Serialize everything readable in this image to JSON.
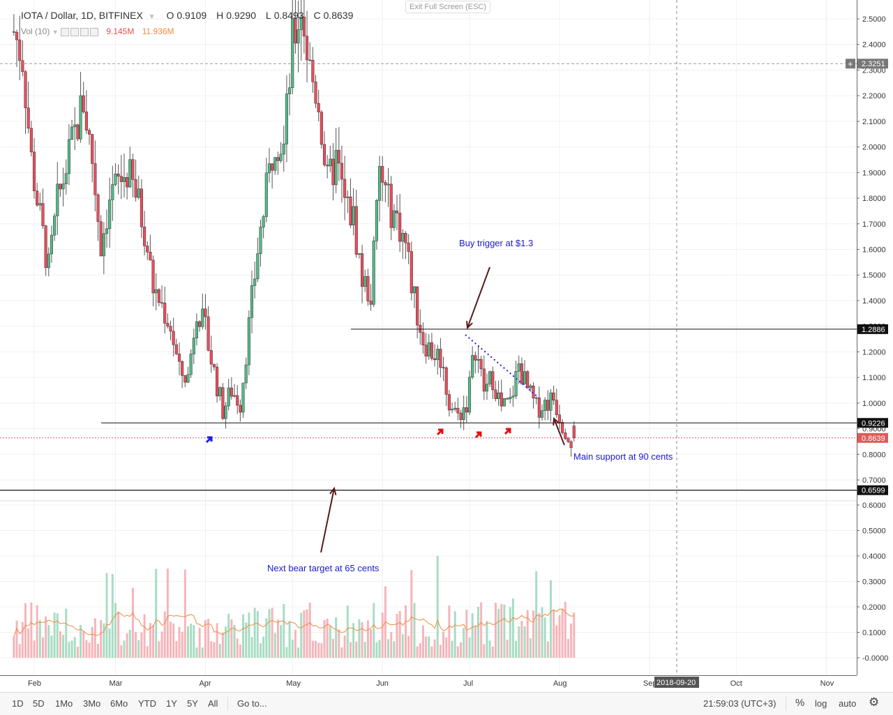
{
  "header": {
    "symbol": "IOTA / Dollar, 1D, BITFINEX",
    "open_label": "O",
    "open": "0.9109",
    "high_label": "H",
    "high": "0.9290",
    "low_label": "L",
    "low": "0.8493",
    "close_label": "C",
    "close": "0.8639",
    "vol_indicator": "Vol (10)",
    "vol_value": "9.145M",
    "vol_ma": "11.936M"
  },
  "exit_fullscreen": "Exit Full Screen (ESC)",
  "toolbar": {
    "timeframes": [
      "1D",
      "5D",
      "1Mo",
      "3Mo",
      "6Mo",
      "YTD",
      "1Y",
      "5Y",
      "All"
    ],
    "goto": "Go to...",
    "clock": "21:59:03 (UTC+3)",
    "percent": "%",
    "log": "log",
    "auto": "auto"
  },
  "icons": {
    "settings": "gear-icon",
    "dropdown": "chevron-down-icon"
  },
  "colors": {
    "up": "#53b987",
    "down": "#eb4d5c",
    "vol_up": "#a8dcc3",
    "vol_down": "#f4b5ba",
    "ma": "#f08a40",
    "annotation": "#1a1acc",
    "price_marker": "#e05a5a"
  },
  "chart_data": {
    "type": "candlestick",
    "symbol": "IOTA / Dollar",
    "exchange": "BITFINEX",
    "interval": "1D",
    "x_ticks": [
      "Feb",
      "Mar",
      "Apr",
      "May",
      "Jun",
      "Jul",
      "Aug",
      "Sep",
      "Oct",
      "Nov"
    ],
    "x_cursor_label": "2018-09-20",
    "price_axis": {
      "ticks": [
        2.5,
        2.4,
        2.3,
        2.2,
        2.1,
        2.0,
        1.9,
        1.8,
        1.7,
        1.6,
        1.5,
        1.4,
        1.3,
        1.2,
        1.1,
        1.0,
        0.9,
        0.8,
        0.7
      ],
      "tick_labels": [
        "2.5000",
        "2.4000",
        "2.3000",
        "2.2000",
        "2.1000",
        "2.0000",
        "1.9000",
        "1.8000",
        "1.7000",
        "1.6000",
        "1.5000",
        "1.4000",
        "1.3000",
        "1.2000",
        "1.1000",
        "1.0000",
        "0.9000",
        "0.8000",
        "0.7000"
      ],
      "range": [
        0.66,
        2.58
      ]
    },
    "volume_axis": {
      "ticks": [
        0.6,
        0.5,
        0.4,
        0.3,
        0.2,
        0.1,
        0.0
      ],
      "tick_labels": [
        "0.6000",
        "0.5000",
        "0.4000",
        "0.3000",
        "0.2000",
        "0.1000",
        "-0.0000"
      ]
    },
    "price_labels": [
      {
        "value": 2.3251,
        "label": "2.3251",
        "style": "dashed"
      },
      {
        "value": 1.2886,
        "label": "1.2886",
        "style": "line"
      },
      {
        "value": 0.9226,
        "label": "0.9226",
        "style": "line"
      },
      {
        "value": 0.8639,
        "label": "0.8639",
        "style": "current"
      },
      {
        "value": 0.6599,
        "label": "0.6599",
        "style": "line"
      }
    ],
    "annotations": [
      {
        "text": "Buy trigger at $1.3",
        "target": 1.29
      },
      {
        "text": "Main support at 90 cents",
        "target": 0.9226
      },
      {
        "text": "Next bear target at 65 cents",
        "target": 0.6599
      }
    ],
    "close_path": [
      {
        "date": "2018-01-25",
        "close": 2.45
      },
      {
        "date": "2018-01-28",
        "close": 2.35
      },
      {
        "date": "2018-01-31",
        "close": 1.95
      },
      {
        "date": "2018-02-03",
        "close": 1.72
      },
      {
        "date": "2018-02-06",
        "close": 1.52
      },
      {
        "date": "2018-02-09",
        "close": 1.78
      },
      {
        "date": "2018-02-12",
        "close": 1.92
      },
      {
        "date": "2018-02-15",
        "close": 2.05
      },
      {
        "date": "2018-02-18",
        "close": 2.18
      },
      {
        "date": "2018-02-21",
        "close": 1.95
      },
      {
        "date": "2018-02-24",
        "close": 1.62
      },
      {
        "date": "2018-02-27",
        "close": 1.8
      },
      {
        "date": "2018-03-02",
        "close": 1.86
      },
      {
        "date": "2018-03-05",
        "close": 1.9
      },
      {
        "date": "2018-03-08",
        "close": 1.82
      },
      {
        "date": "2018-03-11",
        "close": 1.68
      },
      {
        "date": "2018-03-14",
        "close": 1.45
      },
      {
        "date": "2018-03-17",
        "close": 1.38
      },
      {
        "date": "2018-03-20",
        "close": 1.3
      },
      {
        "date": "2018-03-23",
        "close": 1.12
      },
      {
        "date": "2018-03-26",
        "close": 1.1
      },
      {
        "date": "2018-03-29",
        "close": 1.38
      },
      {
        "date": "2018-04-01",
        "close": 1.28
      },
      {
        "date": "2018-04-04",
        "close": 1.12
      },
      {
        "date": "2018-04-07",
        "close": 0.97
      },
      {
        "date": "2018-04-10",
        "close": 1.05
      },
      {
        "date": "2018-04-13",
        "close": 1.0
      },
      {
        "date": "2018-04-16",
        "close": 1.3
      },
      {
        "date": "2018-04-19",
        "close": 1.6
      },
      {
        "date": "2018-04-22",
        "close": 1.82
      },
      {
        "date": "2018-04-25",
        "close": 2.05
      },
      {
        "date": "2018-04-28",
        "close": 2.0
      },
      {
        "date": "2018-05-01",
        "close": 2.4
      },
      {
        "date": "2018-05-04",
        "close": 2.55
      },
      {
        "date": "2018-05-07",
        "close": 2.3
      },
      {
        "date": "2018-05-10",
        "close": 2.18
      },
      {
        "date": "2018-05-13",
        "close": 1.85
      },
      {
        "date": "2018-05-16",
        "close": 1.95
      },
      {
        "date": "2018-05-19",
        "close": 1.78
      },
      {
        "date": "2018-05-22",
        "close": 1.72
      },
      {
        "date": "2018-05-25",
        "close": 1.48
      },
      {
        "date": "2018-05-28",
        "close": 1.42
      },
      {
        "date": "2018-05-31",
        "close": 1.9
      },
      {
        "date": "2018-06-03",
        "close": 1.78
      },
      {
        "date": "2018-06-06",
        "close": 1.72
      },
      {
        "date": "2018-06-09",
        "close": 1.62
      },
      {
        "date": "2018-06-12",
        "close": 1.4
      },
      {
        "date": "2018-06-15",
        "close": 1.25
      },
      {
        "date": "2018-06-18",
        "close": 1.2
      },
      {
        "date": "2018-06-21",
        "close": 1.18
      },
      {
        "date": "2018-06-24",
        "close": 1.0
      },
      {
        "date": "2018-06-27",
        "close": 0.95
      },
      {
        "date": "2018-06-30",
        "close": 1.0
      },
      {
        "date": "2018-07-03",
        "close": 1.22
      },
      {
        "date": "2018-07-06",
        "close": 1.05
      },
      {
        "date": "2018-07-09",
        "close": 1.1
      },
      {
        "date": "2018-07-12",
        "close": 0.98
      },
      {
        "date": "2018-07-15",
        "close": 1.0
      },
      {
        "date": "2018-07-18",
        "close": 1.15
      },
      {
        "date": "2018-07-21",
        "close": 1.05
      },
      {
        "date": "2018-07-24",
        "close": 0.98
      },
      {
        "date": "2018-07-27",
        "close": 1.0
      },
      {
        "date": "2018-07-30",
        "close": 1.02
      },
      {
        "date": "2018-08-02",
        "close": 0.92
      },
      {
        "date": "2018-08-05",
        "close": 0.86
      }
    ]
  }
}
